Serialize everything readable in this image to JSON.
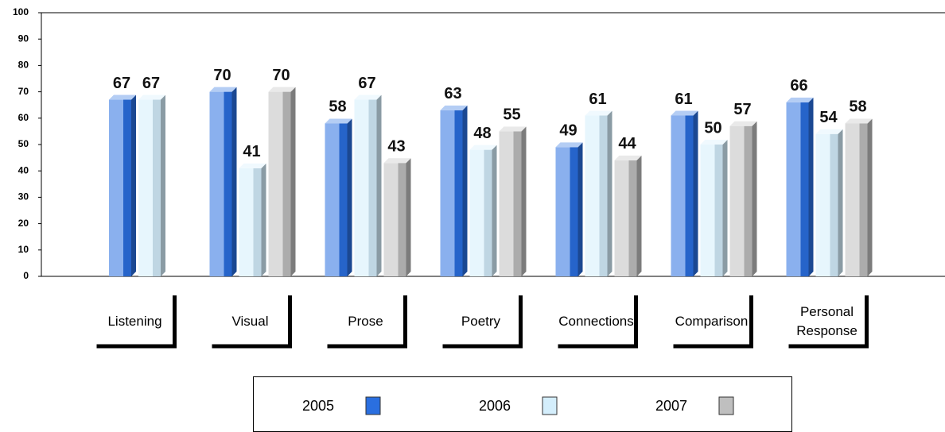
{
  "chart_data": {
    "type": "bar",
    "categories": [
      "Listening",
      "Visual",
      "Prose",
      "Poetry",
      "Connections",
      "Comparison",
      "Personal Response"
    ],
    "series": [
      {
        "name": "2005",
        "color": "#2a6fe0",
        "values": [
          67,
          70,
          58,
          63,
          49,
          61,
          66
        ]
      },
      {
        "name": "2006",
        "color": "#d4eefc",
        "values": [
          67,
          41,
          67,
          48,
          61,
          50,
          54
        ]
      },
      {
        "name": "2007",
        "color": "#bfbfbf",
        "values": [
          null,
          70,
          43,
          55,
          44,
          57,
          58
        ]
      }
    ],
    "ylim": [
      0,
      100
    ],
    "yticks": [
      0,
      10,
      20,
      30,
      40,
      50,
      60,
      70,
      80,
      90,
      100
    ]
  }
}
